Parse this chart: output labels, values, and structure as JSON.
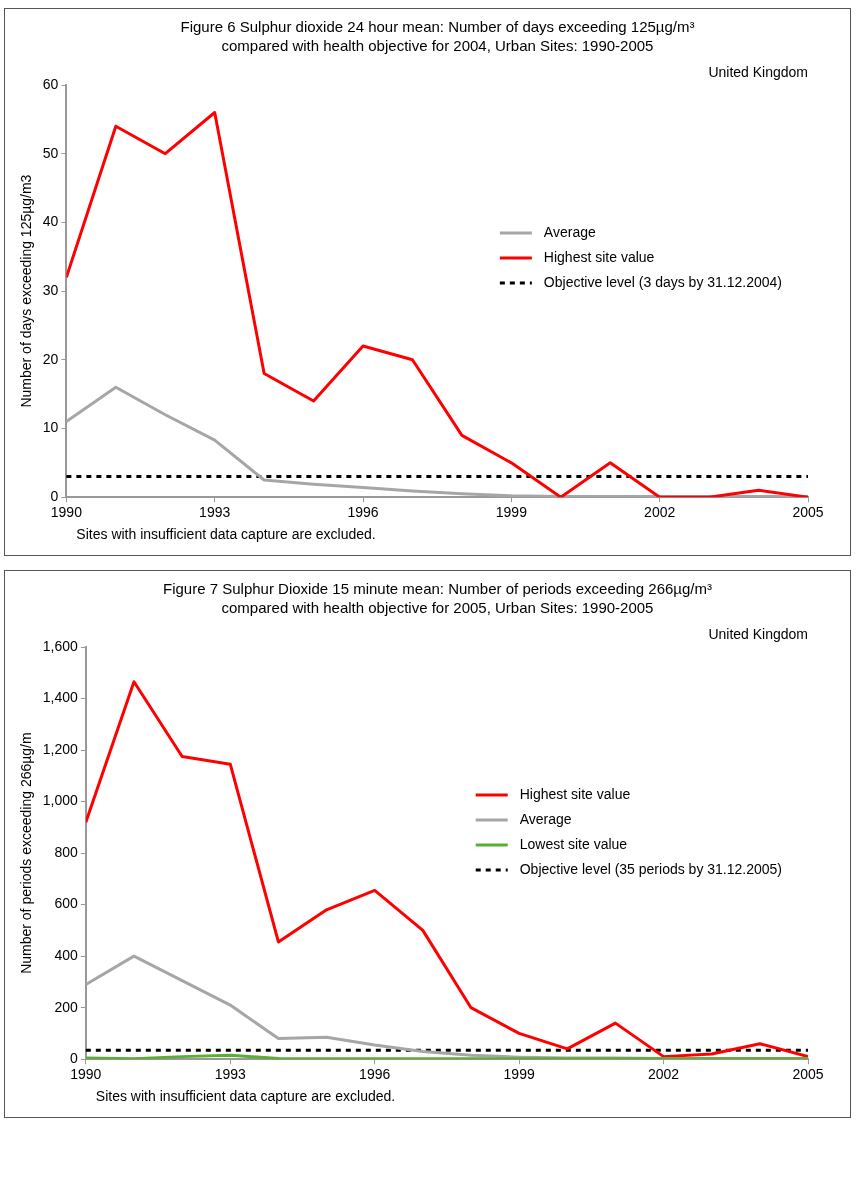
{
  "chart_data": [
    {
      "type": "line",
      "title": "Figure 6 Sulphur dioxide 24 hour mean: Number of days exceeding 125µg/m³\ncompared with health objective for 2004, Urban Sites: 1990-2005",
      "ylabel": "Number of days exceeding 125µg/m3",
      "x": [
        1990,
        1991,
        1992,
        1993,
        1994,
        1995,
        1996,
        1997,
        1998,
        1999,
        2000,
        2001,
        2002,
        2003,
        2004,
        2005
      ],
      "series": [
        {
          "name": "Average",
          "color": "#a6a6a6",
          "values": [
            11,
            16,
            12,
            8.3,
            2.5,
            1.9,
            1.4,
            0.9,
            0.5,
            0.2,
            0.1,
            0.1,
            0.1,
            0.1,
            0.1,
            0.1
          ]
        },
        {
          "name": "Highest site value",
          "color": "#ff0000",
          "values": [
            32,
            54,
            50,
            56,
            18,
            14,
            22,
            20,
            9,
            5,
            0,
            5,
            0,
            0,
            1,
            0
          ]
        }
      ],
      "xlim": [
        1990,
        2005
      ],
      "xticks": [
        1990,
        1993,
        1996,
        1999,
        2002,
        2005
      ],
      "ylim": [
        0,
        60
      ],
      "yticks": [
        0,
        10,
        20,
        30,
        40,
        50,
        60
      ],
      "ref_lines": [
        {
          "axis": "y",
          "value": 3,
          "label": "Objective level (3 days by 31.12.2004)",
          "color": "#000000",
          "line_style": "dashed"
        }
      ],
      "annotations": [
        "United Kingdom",
        "Sites with insufficient data capture are excluded."
      ],
      "legend": "right",
      "grid": false,
      "marker": "none",
      "line_style": "solid"
    },
    {
      "type": "line",
      "title": "Figure 7 Sulphur Dioxide 15 minute mean: Number of periods exceeding 266µg/m³\ncompared with health objective for 2005, Urban Sites: 1990-2005",
      "ylabel": "Number of periods exceeding 266µg/m",
      "x": [
        1990,
        1991,
        1992,
        1993,
        1994,
        1995,
        1996,
        1997,
        1998,
        1999,
        2000,
        2001,
        2002,
        2003,
        2004,
        2005
      ],
      "series": [
        {
          "name": "Highest site value",
          "color": "#ff0000",
          "values": [
            920,
            1465,
            1175,
            1145,
            455,
            580,
            655,
            500,
            200,
            100,
            40,
            140,
            10,
            20,
            60,
            10
          ]
        },
        {
          "name": "Average",
          "color": "#a6a6a6",
          "values": [
            290,
            400,
            305,
            210,
            80,
            85,
            55,
            30,
            15,
            8,
            5,
            5,
            3,
            3,
            3,
            3
          ]
        },
        {
          "name": "Lowest site value",
          "color": "#5aae32",
          "values": [
            5,
            2,
            10,
            15,
            3,
            2,
            2,
            2,
            2,
            2,
            2,
            2,
            2,
            2,
            2,
            2
          ]
        }
      ],
      "xlim": [
        1990,
        2005
      ],
      "xticks": [
        1990,
        1993,
        1996,
        1999,
        2002,
        2005
      ],
      "ylim": [
        0,
        1600
      ],
      "yticks": [
        0,
        200,
        400,
        600,
        800,
        {
          "value": 1000,
          "label": "1,000"
        },
        {
          "value": 1200,
          "label": "1,200"
        },
        {
          "value": 1400,
          "label": "1,400"
        },
        {
          "value": 1600,
          "label": "1,600"
        }
      ],
      "ref_lines": [
        {
          "axis": "y",
          "value": 35,
          "label": "Objective level (35 periods by 31.12.2005)",
          "color": "#000000",
          "line_style": "dashed"
        }
      ],
      "annotations": [
        "United Kingdom",
        "Sites with insufficient data capture are excluded."
      ],
      "legend": "right",
      "grid": false,
      "marker": "none",
      "line_style": "solid"
    }
  ]
}
